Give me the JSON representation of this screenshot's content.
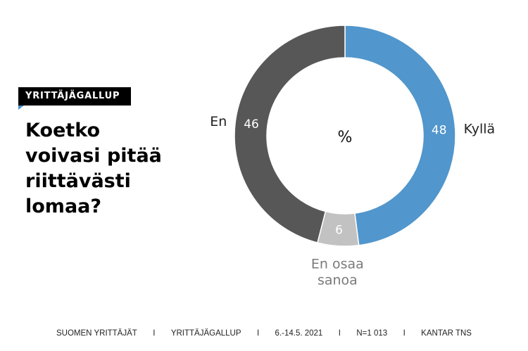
{
  "badge": "YRITTÄJÄGALLUP",
  "question_lines": [
    "Koetko",
    "voivasi pitää",
    "riittävästi",
    "lomaa?"
  ],
  "center_label": "%",
  "chart_data": {
    "type": "pie",
    "variant": "donut",
    "title": "Koetko voivasi pitää riittävästi lomaa?",
    "unit": "%",
    "slices": [
      {
        "label": "Kyllä",
        "value": 48,
        "color": "#5196cc",
        "label_color": "#222222"
      },
      {
        "label": "En osaa sanoa",
        "value": 6,
        "color": "#c2c2c2",
        "label_color": "#7a7a7a"
      },
      {
        "label": "En",
        "value": 46,
        "color": "#575757",
        "label_color": "#222222"
      }
    ],
    "start": "12 o'clock",
    "direction": "clockwise"
  },
  "footer": [
    "SUOMEN YRITTÄJÄT",
    "I",
    "YRITTÄJÄGALLUP",
    "I",
    "6.-14.5. 2021",
    "I",
    "N=1 013",
    "I",
    "KANTAR TNS"
  ]
}
